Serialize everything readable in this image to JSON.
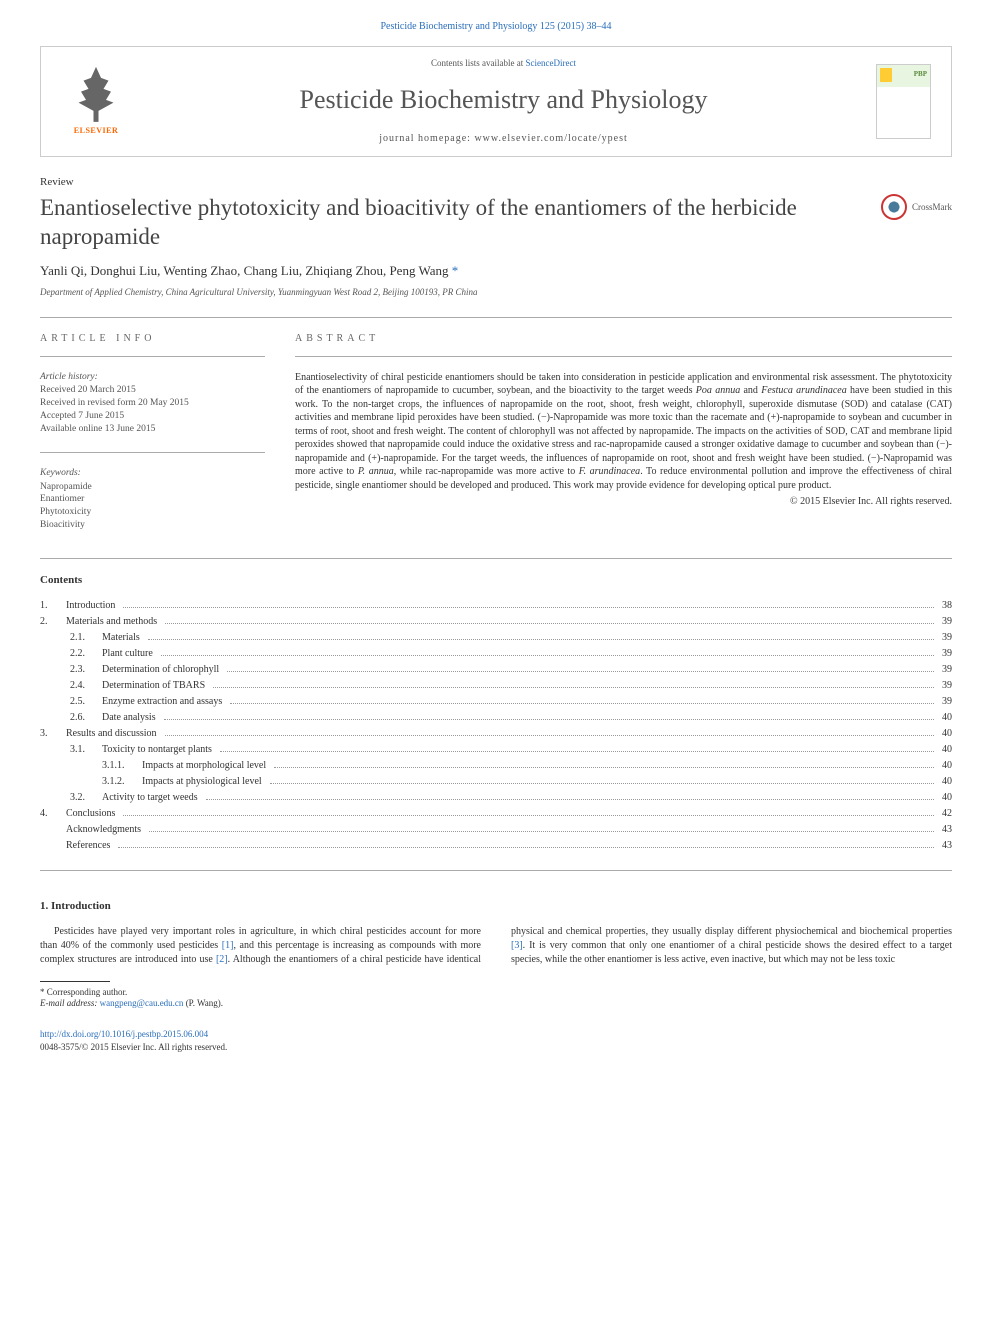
{
  "top_link": "Pesticide Biochemistry and Physiology 125 (2015) 38–44",
  "header": {
    "publisher": "ELSEVIER",
    "contents_prefix": "Contents lists available at ",
    "contents_link": "ScienceDirect",
    "journal_title": "Pesticide Biochemistry and Physiology",
    "homepage_prefix": "journal homepage: ",
    "homepage_url": "www.elsevier.com/locate/ypest"
  },
  "article": {
    "type": "Review",
    "title": "Enantioselective phytotoxicity and bioacitivity of the enantiomers of the herbicide napropamide",
    "crossmark": "CrossMark",
    "authors": "Yanli Qi, Donghui Liu, Wenting Zhao, Chang Liu, Zhiqiang Zhou, Peng Wang",
    "corr_mark": "*",
    "affiliation": "Department of Applied Chemistry, China Agricultural University, Yuanmingyuan West Road 2, Beijing 100193, PR China"
  },
  "info": {
    "label": "ARTICLE INFO",
    "history_head": "Article history:",
    "history": [
      "Received 20 March 2015",
      "Received in revised form 20 May 2015",
      "Accepted 7 June 2015",
      "Available online 13 June 2015"
    ],
    "keywords_head": "Keywords:",
    "keywords": [
      "Napropamide",
      "Enantiomer",
      "Phytotoxicity",
      "Bioacitivity"
    ]
  },
  "abstract": {
    "label": "ABSTRACT",
    "text_pre": "Enantioselectivity of chiral pesticide enantiomers should be taken into consideration in pesticide application and environmental risk assessment. The phytotoxicity of the enantiomers of napropamide to cucumber, soybean, and the bioactivity to the target weeds ",
    "species1": "Poa annua",
    "text_mid1": " and ",
    "species2": "Festuca arundinacea",
    "text_mid2": " have been studied in this work. To the non-target crops, the influences of napropamide on the root, shoot, fresh weight, chlorophyll, superoxide dismutase (SOD) and catalase (CAT) activities and membrane lipid peroxides have been studied. (−)-Napropamide was more toxic than the racemate and (+)-napropamide to soybean and cucumber in terms of root, shoot and fresh weight. The content of chlorophyll was not affected by napropamide. The impacts on the activities of SOD, CAT and membrane lipid peroxides showed that napropamide could induce the oxidative stress and rac-napropamide caused a stronger oxidative damage to cucumber and soybean than (−)-napropamide and (+)-napropamide. For the target weeds, the influences of napropamide on root, shoot and fresh weight have been studied. (−)-Napropamid was more active to ",
    "species3": "P. annua",
    "text_mid3": ", while rac-napropamide was more active to ",
    "species4": "F. arundinacea",
    "text_post": ". To reduce environmental pollution and improve the effectiveness of chiral pesticide, single enantiomer should be developed and produced. This work may provide evidence for developing optical pure product.",
    "copyright": "© 2015 Elsevier Inc. All rights reserved."
  },
  "contents": {
    "heading": "Contents",
    "items": [
      {
        "lvl": 1,
        "num": "1.",
        "title": "Introduction",
        "page": "38"
      },
      {
        "lvl": 1,
        "num": "2.",
        "title": "Materials and methods",
        "page": "39"
      },
      {
        "lvl": 2,
        "num": "2.1.",
        "title": "Materials",
        "page": "39"
      },
      {
        "lvl": 2,
        "num": "2.2.",
        "title": "Plant culture",
        "page": "39"
      },
      {
        "lvl": 2,
        "num": "2.3.",
        "title": "Determination of chlorophyll",
        "page": "39"
      },
      {
        "lvl": 2,
        "num": "2.4.",
        "title": "Determination of TBARS",
        "page": "39"
      },
      {
        "lvl": 2,
        "num": "2.5.",
        "title": "Enzyme extraction and assays",
        "page": "39"
      },
      {
        "lvl": 2,
        "num": "2.6.",
        "title": "Date analysis",
        "page": "40"
      },
      {
        "lvl": 1,
        "num": "3.",
        "title": "Results and discussion",
        "page": "40"
      },
      {
        "lvl": 2,
        "num": "3.1.",
        "title": "Toxicity to nontarget plants",
        "page": "40"
      },
      {
        "lvl": 3,
        "num": "3.1.1.",
        "title": "Impacts at morphological level",
        "page": "40"
      },
      {
        "lvl": 3,
        "num": "3.1.2.",
        "title": "Impacts at physiological level",
        "page": "40"
      },
      {
        "lvl": 2,
        "num": "3.2.",
        "title": "Activity to target weeds",
        "page": "40"
      },
      {
        "lvl": 1,
        "num": "4.",
        "title": "Conclusions",
        "page": "42"
      },
      {
        "lvl": 1,
        "num": "",
        "title": "Acknowledgments",
        "page": "43"
      },
      {
        "lvl": 1,
        "num": "",
        "title": "References",
        "page": "43"
      }
    ]
  },
  "introduction": {
    "heading": "1. Introduction",
    "p1_pre": "Pesticides have played very important roles in agriculture, in which chiral pesticides account for more than 40% of the commonly used",
    "p1_post_a": "pesticides ",
    "ref1": "[1]",
    "p1_post_b": ", and this percentage is increasing as compounds with more complex structures are introduced into use ",
    "ref2": "[2]",
    "p1_post_c": ". Although the enantiomers of a chiral pesticide have identical physical and chemical properties, they usually display different physiochemical and biochemical properties ",
    "ref3": "[3]",
    "p1_post_d": ". It is very common that only one enantiomer of a chiral pesticide shows the desired effect to a target species, while the other enantiomer is less active, even inactive, but which may not be less toxic"
  },
  "footnote": {
    "corr_label": "* Corresponding author.",
    "email_label": "E-mail address: ",
    "email": "wangpeng@cau.edu.cn",
    "email_suffix": " (P. Wang)."
  },
  "footer": {
    "doi": "http://dx.doi.org/10.1016/j.pestbp.2015.06.004",
    "issn_line": "0048-3575/© 2015 Elsevier Inc. All rights reserved."
  },
  "colors": {
    "link": "#2a6ebb",
    "text": "#333333",
    "muted": "#555555",
    "border": "#cccccc",
    "orange": "#ff6600"
  }
}
